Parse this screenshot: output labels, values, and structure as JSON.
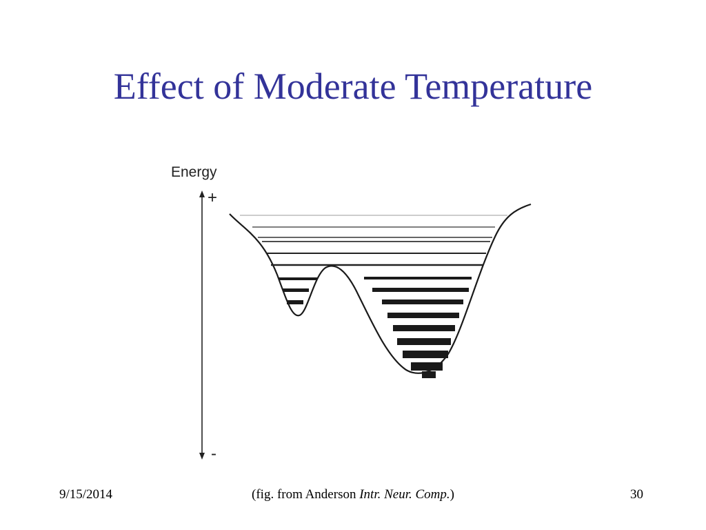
{
  "slide": {
    "title": "Effect of Moderate Temperature"
  },
  "figure": {
    "y_axis_label": "Energy",
    "y_top_label": "+",
    "y_bottom_label": "-",
    "colors": {
      "ink": "#1a1a1a",
      "faint_line": "#9a9a9a"
    }
  },
  "footer": {
    "date": "9/15/2014",
    "caption_prefix": "(fig. from Anderson ",
    "caption_italic": "Intr. Neur. Comp.",
    "caption_suffix": ")",
    "page_number": "30"
  }
}
